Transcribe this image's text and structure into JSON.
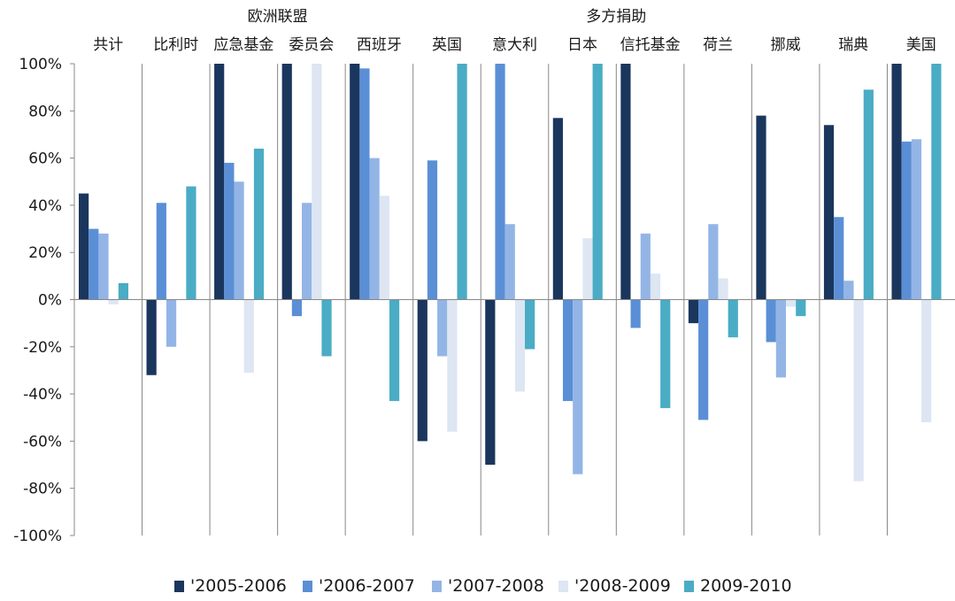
{
  "chart_data": {
    "type": "bar",
    "title": "",
    "xlabel": "",
    "ylabel": "",
    "ylim": [
      -100,
      100
    ],
    "y_ticks": [
      100,
      80,
      60,
      40,
      20,
      0,
      -20,
      -40,
      -60,
      -80,
      -100
    ],
    "y_tick_labels": [
      "100%",
      "80%",
      "60%",
      "40%",
      "20%",
      "0%",
      "-20%",
      "-40%",
      "-60%",
      "-80%",
      "-100%"
    ],
    "grid": false,
    "legend_position": "bottom",
    "categories": [
      "共计",
      "比利时",
      "应急基金",
      "委员会",
      "西班牙",
      "英国",
      "意大利",
      "日本",
      "信托基金",
      "荷兰",
      "挪威",
      "瑞典",
      "美国"
    ],
    "category_groups": [
      {
        "label": "欧洲联盟",
        "start": 2,
        "end": 3
      },
      {
        "label": "多方捐助",
        "start": 7,
        "end": 8
      }
    ],
    "series": [
      {
        "name": "'2005-2006",
        "color": "#1b365d",
        "values": [
          45,
          -32,
          100,
          100,
          100,
          -60,
          -70,
          77,
          100,
          -10,
          78,
          74,
          100
        ]
      },
      {
        "name": "'2006-2007",
        "color": "#5a8fd6",
        "values": [
          30,
          41,
          58,
          -7,
          98,
          59,
          100,
          -43,
          -12,
          -51,
          -18,
          35,
          67
        ]
      },
      {
        "name": "'2007-2008",
        "color": "#93b5e6",
        "values": [
          28,
          -20,
          50,
          41,
          60,
          -24,
          32,
          -74,
          28,
          32,
          -33,
          8,
          68
        ]
      },
      {
        "name": "'2008-2009",
        "color": "#dde6f2",
        "values": [
          -2,
          0,
          -31,
          100,
          44,
          -56,
          -39,
          26,
          11,
          9,
          -3,
          -77,
          -52
        ]
      },
      {
        "name": "2009-2010",
        "color": "#4aacc5",
        "values": [
          7,
          48,
          64,
          -24,
          -43,
          100,
          -21,
          100,
          -46,
          -16,
          -7,
          89,
          100
        ]
      }
    ]
  }
}
